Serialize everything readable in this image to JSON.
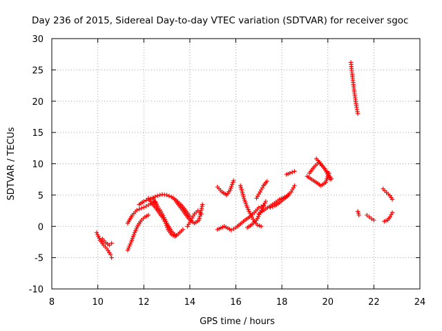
{
  "chart_data": {
    "type": "scatter",
    "title": "Day 236 of 2015, Sidereal Day-to-day VTEC variation (SDTVAR) for receiver sgoc",
    "xlabel": "GPS time / hours",
    "ylabel": "SDTVAR / TECUs",
    "xlim": [
      8,
      24
    ],
    "ylim": [
      -10,
      30
    ],
    "xticks": [
      8,
      10,
      12,
      14,
      16,
      18,
      20,
      22,
      24
    ],
    "yticks": [
      -10,
      -5,
      0,
      5,
      10,
      15,
      20,
      25,
      30
    ],
    "grid": true,
    "marker": "+",
    "color": "#ff0000",
    "segments": [
      {
        "name": "s1",
        "x": [
          9.95,
          10.1,
          10.25,
          10.4,
          10.55,
          10.6
        ],
        "y": [
          -1.0,
          -2.2,
          -3.0,
          -3.6,
          -4.5,
          -5.0
        ]
      },
      {
        "name": "s2",
        "x": [
          10.2,
          10.35,
          10.5,
          10.6
        ],
        "y": [
          -2.0,
          -2.6,
          -3.0,
          -2.7
        ]
      },
      {
        "name": "s3",
        "x": [
          11.3,
          11.45,
          11.6,
          11.75,
          11.9,
          12.05,
          12.2
        ],
        "y": [
          -3.8,
          -2.5,
          -1.0,
          0.2,
          1.0,
          1.5,
          1.8
        ]
      },
      {
        "name": "s4",
        "x": [
          11.3,
          11.5,
          11.7,
          11.9,
          12.1,
          12.3,
          12.5
        ],
        "y": [
          0.5,
          1.8,
          2.6,
          2.9,
          3.2,
          3.6,
          3.9
        ]
      },
      {
        "name": "s5",
        "x": [
          11.8,
          12.0,
          12.2,
          12.4,
          12.6,
          12.8,
          13.0,
          13.2,
          13.4,
          13.6,
          13.8,
          14.0
        ],
        "y": [
          3.5,
          4.0,
          4.3,
          4.6,
          4.9,
          5.1,
          5.0,
          4.7,
          4.2,
          3.5,
          2.6,
          1.6
        ]
      },
      {
        "name": "s6",
        "x": [
          12.2,
          12.4,
          12.6,
          12.8,
          12.95,
          13.05,
          13.2,
          13.35,
          13.5,
          13.7
        ],
        "y": [
          4.5,
          3.5,
          2.5,
          1.5,
          0.5,
          -0.5,
          -1.3,
          -1.6,
          -1.2,
          -0.5
        ]
      },
      {
        "name": "s7",
        "x": [
          12.4,
          12.6,
          12.8,
          13.0,
          13.2,
          13.4
        ],
        "y": [
          4.5,
          3.2,
          2.0,
          0.5,
          -0.8,
          -1.5
        ]
      },
      {
        "name": "s8",
        "x": [
          13.4,
          13.6,
          13.8,
          14.0,
          14.2,
          14.4,
          14.55
        ],
        "y": [
          4.0,
          3.0,
          2.0,
          1.0,
          0.5,
          1.0,
          3.5
        ]
      },
      {
        "name": "s9",
        "x": [
          13.9,
          14.05,
          14.2,
          14.35,
          14.5
        ],
        "y": [
          0.0,
          1.0,
          2.0,
          2.5,
          2.0
        ]
      },
      {
        "name": "s10",
        "x": [
          15.2,
          15.4,
          15.6,
          15.75,
          15.9
        ],
        "y": [
          6.3,
          5.5,
          5.0,
          5.8,
          7.3
        ]
      },
      {
        "name": "s11",
        "x": [
          15.2,
          15.5,
          15.8,
          16.0,
          16.2,
          16.4,
          16.6,
          16.8,
          17.0,
          17.2
        ],
        "y": [
          -0.5,
          0.0,
          -0.6,
          -0.2,
          0.4,
          1.0,
          1.5,
          2.2,
          3.0,
          3.3
        ]
      },
      {
        "name": "s12",
        "x": [
          16.2,
          16.35,
          16.5,
          16.65,
          16.8,
          16.95,
          17.1
        ],
        "y": [
          6.5,
          4.5,
          3.0,
          1.8,
          0.8,
          0.2,
          0.0
        ]
      },
      {
        "name": "s13",
        "x": [
          16.5,
          16.7,
          16.9,
          17.1,
          17.3
        ],
        "y": [
          -0.2,
          0.3,
          1.0,
          2.5,
          4.0
        ]
      },
      {
        "name": "s14",
        "x": [
          16.9,
          17.05,
          17.2,
          17.35
        ],
        "y": [
          4.5,
          5.5,
          6.5,
          7.2
        ]
      },
      {
        "name": "s15",
        "x": [
          17.0,
          17.3,
          17.6,
          17.9,
          18.2,
          18.4,
          18.55
        ],
        "y": [
          2.0,
          2.8,
          3.5,
          4.3,
          4.8,
          5.5,
          6.5
        ]
      },
      {
        "name": "s16",
        "x": [
          17.5,
          17.7,
          17.9,
          18.1,
          18.3
        ],
        "y": [
          3.0,
          3.3,
          3.8,
          4.4,
          5.0
        ]
      },
      {
        "name": "s17",
        "x": [
          18.2,
          18.35,
          18.55
        ],
        "y": [
          8.3,
          8.5,
          8.8
        ]
      },
      {
        "name": "s18",
        "x": [
          19.1,
          19.3,
          19.5,
          19.7,
          19.9,
          20.05
        ],
        "y": [
          8.0,
          7.5,
          7.0,
          6.5,
          7.0,
          8.5
        ]
      },
      {
        "name": "s19",
        "x": [
          19.5,
          19.7,
          19.9,
          20.1
        ],
        "y": [
          10.8,
          10.0,
          9.0,
          7.5
        ]
      },
      {
        "name": "s20",
        "x": [
          19.2,
          19.4,
          19.6,
          19.8,
          20.0,
          20.15
        ],
        "y": [
          8.5,
          9.5,
          10.2,
          9.5,
          8.5,
          7.6
        ]
      },
      {
        "name": "s21",
        "x": [
          21.0,
          21.05,
          21.1,
          21.15,
          21.2,
          21.25,
          21.3
        ],
        "y": [
          26.2,
          24.5,
          23.0,
          21.5,
          20.2,
          19.0,
          18.0
        ]
      },
      {
        "name": "s22",
        "x": [
          21.3,
          21.35
        ],
        "y": [
          2.4,
          1.8
        ]
      },
      {
        "name": "s23",
        "x": [
          21.7,
          21.8,
          21.9,
          22.0
        ],
        "y": [
          1.8,
          1.5,
          1.2,
          1.0
        ]
      },
      {
        "name": "s24",
        "x": [
          22.4,
          22.55,
          22.7,
          22.8
        ],
        "y": [
          6.0,
          5.4,
          4.9,
          4.3
        ]
      },
      {
        "name": "s25",
        "x": [
          22.45,
          22.6,
          22.7,
          22.8
        ],
        "y": [
          0.8,
          1.0,
          1.5,
          2.2
        ]
      }
    ]
  }
}
